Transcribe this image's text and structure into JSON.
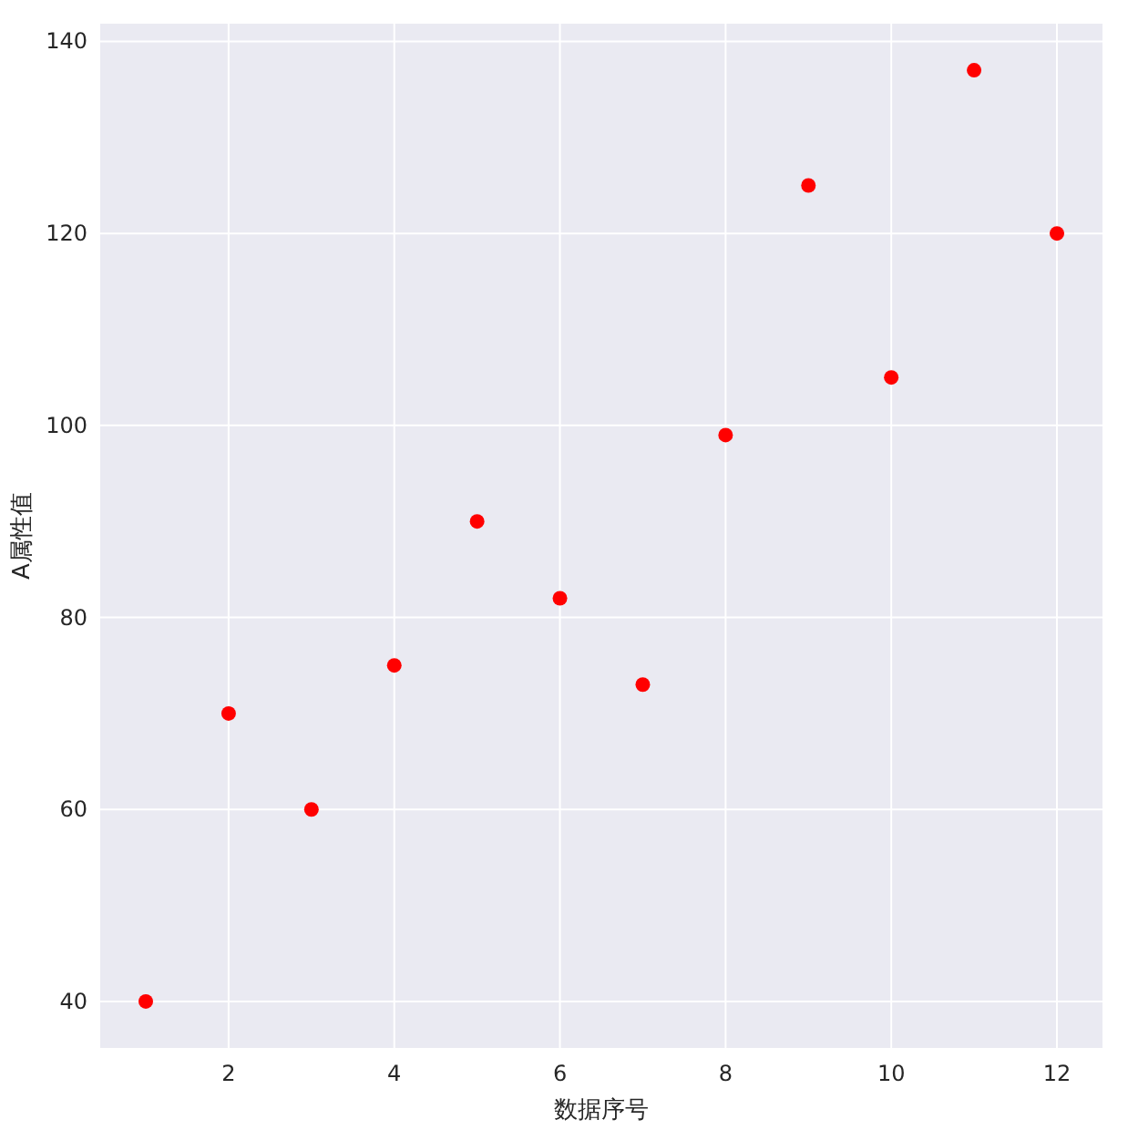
{
  "chart_data": {
    "type": "scatter",
    "xlabel": "数据序号",
    "ylabel": "A属性值",
    "x": [
      1,
      2,
      3,
      4,
      5,
      6,
      7,
      8,
      9,
      10,
      11,
      12
    ],
    "values": [
      40,
      70,
      60,
      75,
      90,
      82,
      73,
      99,
      125,
      105,
      137,
      120
    ],
    "color": "#ff0000",
    "marker": "circle",
    "xlim": [
      0.45,
      12.55
    ],
    "ylim": [
      35.15,
      141.85
    ],
    "xticks": [
      2,
      4,
      6,
      8,
      10,
      12
    ],
    "yticks": [
      40,
      60,
      80,
      100,
      120,
      140
    ],
    "grid": true
  }
}
